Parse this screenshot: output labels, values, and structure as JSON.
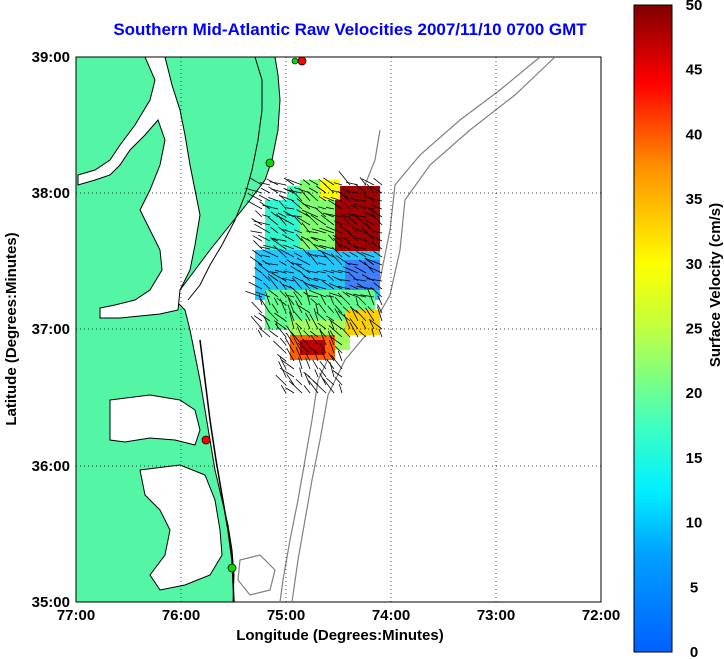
{
  "title": "Southern Mid-Atlantic Raw Velocities 2007/11/10 0700 GMT",
  "axes": {
    "xlabel": "Longitude (Degrees:Minutes)",
    "ylabel": "Latitude (Degrees:Minutes)",
    "xticks": [
      "77:00",
      "76:00",
      "75:00",
      "74:00",
      "73:00",
      "72:00"
    ],
    "yticks": [
      "39:00",
      "38:00",
      "37:00",
      "36:00",
      "35:00"
    ],
    "grid": "dotted"
  },
  "colorbar": {
    "label": "Surface Velocity (cm/s)",
    "ticks": [
      "0",
      "5",
      "10",
      "15",
      "20",
      "25",
      "30",
      "35",
      "40",
      "45",
      "50"
    ],
    "min": 0,
    "max": 50,
    "colormap": "jet"
  },
  "colors": {
    "land": "#55f5a6",
    "title": "#0000ff",
    "bathymetry": "#808080",
    "station_red": "#ff0000",
    "station_green": "#00dd00"
  },
  "stations": [
    {
      "color": "red",
      "lon": -74.88,
      "lat": 38.97
    },
    {
      "color": "green",
      "lon": -75.1,
      "lat": 38.23
    },
    {
      "color": "red",
      "lon": -75.73,
      "lat": 36.17
    },
    {
      "color": "green",
      "lon": -75.47,
      "lat": 35.27
    }
  ]
}
